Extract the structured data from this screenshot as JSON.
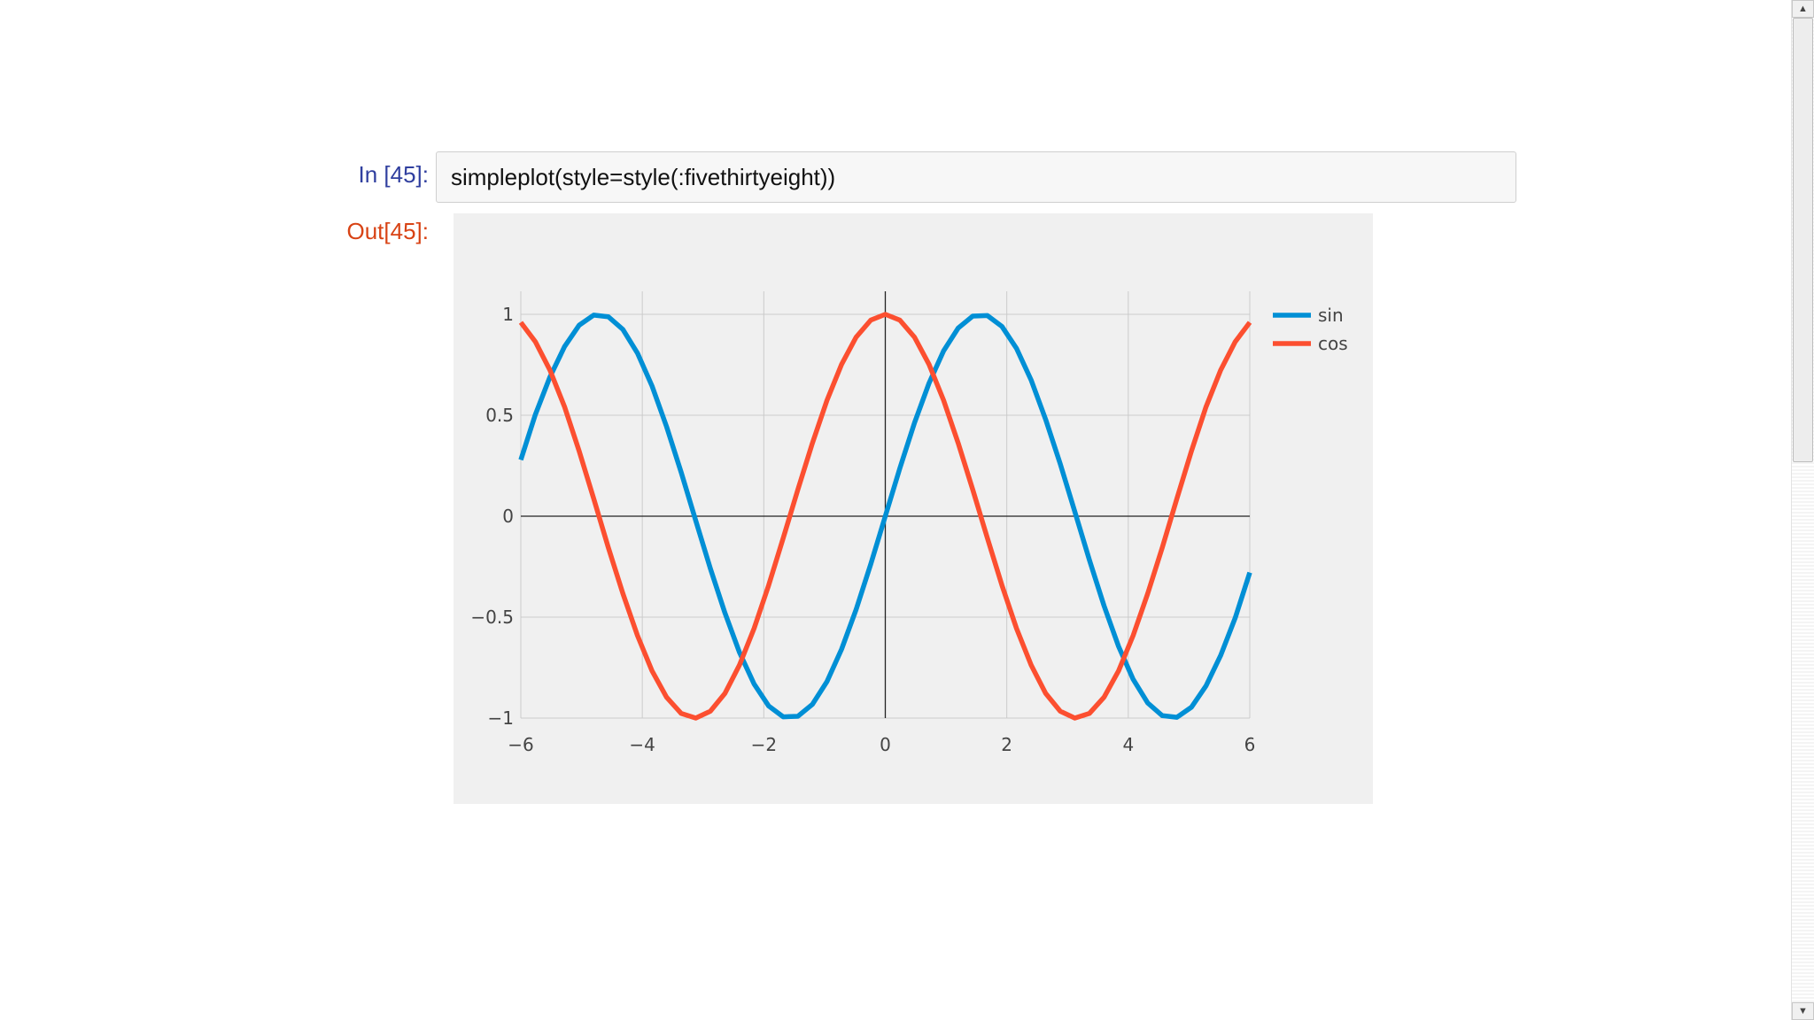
{
  "notebook": {
    "input_prompt": "In [45]:",
    "output_prompt": "Out[45]:",
    "code": "simpleplot(style=style(:fivethirtyeight))"
  },
  "scrollbar": {
    "up_icon": "triangle-up-icon",
    "down_icon": "triangle-down-icon"
  },
  "colors": {
    "sin": "#008fd5",
    "cos": "#fc4f30",
    "plot_bg": "#f0f0f0",
    "grid": "#cbcbcb",
    "axis": "#222222"
  },
  "chart_data": {
    "type": "line",
    "title": "",
    "xlabel": "",
    "ylabel": "",
    "xlim": [
      -6,
      6
    ],
    "ylim": [
      -1,
      1
    ],
    "x_ticks": [
      -6,
      -4,
      -2,
      0,
      2,
      4,
      6
    ],
    "x_tick_labels": [
      "−6",
      "−4",
      "−2",
      "0",
      "2",
      "4",
      "6"
    ],
    "y_ticks": [
      1,
      0.5,
      0,
      -0.5,
      -1
    ],
    "y_tick_labels": [
      "1",
      "0.5",
      "0",
      "−0.5",
      "−1"
    ],
    "grid": true,
    "legend_position": "top-right",
    "x": [
      -6.0,
      -5.76,
      -5.52,
      -5.28,
      -5.04,
      -4.8,
      -4.56,
      -4.32,
      -4.08,
      -3.84,
      -3.6,
      -3.36,
      -3.12,
      -2.88,
      -2.64,
      -2.4,
      -2.16,
      -1.92,
      -1.68,
      -1.44,
      -1.2,
      -0.96,
      -0.72,
      -0.48,
      -0.24,
      0.0,
      0.24,
      0.48,
      0.72,
      0.96,
      1.2,
      1.44,
      1.68,
      1.92,
      2.16,
      2.4,
      2.64,
      2.88,
      3.12,
      3.36,
      3.6,
      3.84,
      4.08,
      4.32,
      4.56,
      4.8,
      5.04,
      5.28,
      5.52,
      5.76,
      6.0
    ],
    "series": [
      {
        "name": "sin",
        "values": [
          0.279,
          0.504,
          0.69,
          0.84,
          0.946,
          0.996,
          0.988,
          0.925,
          0.808,
          0.645,
          0.443,
          0.217,
          -0.022,
          -0.259,
          -0.479,
          -0.675,
          -0.831,
          -0.94,
          -0.994,
          -0.991,
          -0.932,
          -0.819,
          -0.659,
          -0.462,
          -0.238,
          0.0,
          0.238,
          0.462,
          0.659,
          0.819,
          0.932,
          0.991,
          0.994,
          0.94,
          0.831,
          0.675,
          0.479,
          0.259,
          0.022,
          -0.217,
          -0.443,
          -0.645,
          -0.808,
          -0.925,
          -0.988,
          -0.996,
          -0.946,
          -0.84,
          -0.69,
          -0.504,
          -0.279
        ]
      },
      {
        "name": "cos",
        "values": [
          0.96,
          0.864,
          0.723,
          0.542,
          0.323,
          0.087,
          -0.155,
          -0.383,
          -0.591,
          -0.766,
          -0.897,
          -0.977,
          -1.0,
          -0.966,
          -0.878,
          -0.737,
          -0.556,
          -0.342,
          -0.108,
          0.131,
          0.362,
          0.574,
          0.752,
          0.887,
          0.971,
          1.0,
          0.971,
          0.887,
          0.752,
          0.574,
          0.362,
          0.131,
          -0.108,
          -0.342,
          -0.556,
          -0.737,
          -0.878,
          -0.966,
          -1.0,
          -0.977,
          -0.897,
          -0.766,
          -0.591,
          -0.383,
          -0.155,
          0.087,
          0.323,
          0.542,
          0.723,
          0.864,
          0.96
        ]
      }
    ]
  }
}
